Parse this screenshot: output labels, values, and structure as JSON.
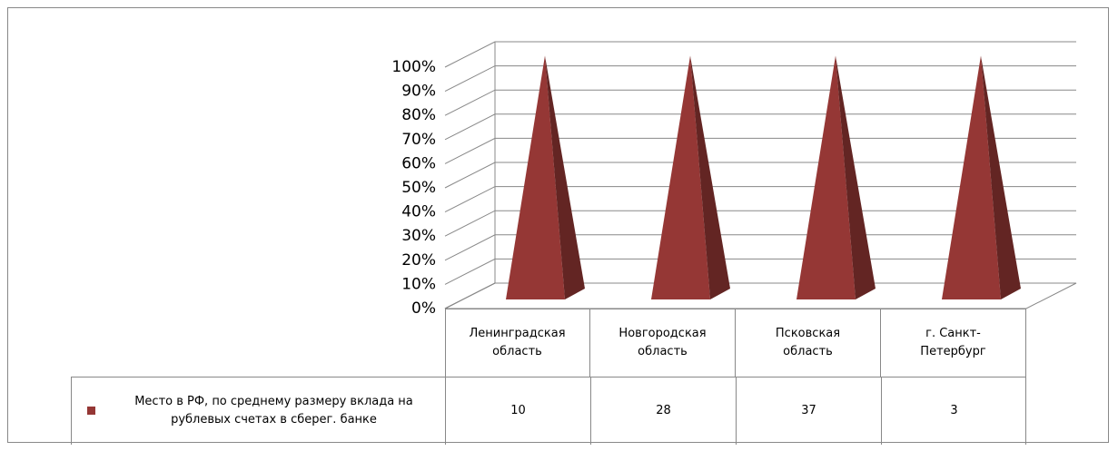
{
  "chart_data": {
    "type": "pyramid3d_percent_stacked",
    "categories": [
      "Ленинградская область",
      "Новгородская область",
      "Псковская область",
      "г. Санкт-Петербург"
    ],
    "series": [
      {
        "name": "Место в РФ, по среднему размеру вклада на рублевых счетах в сберег. банке",
        "color": "#953735",
        "values": [
          10,
          28,
          37,
          3
        ]
      }
    ],
    "ylim": [
      0,
      100
    ],
    "yticks": [
      {
        "value": 0,
        "label": "0%"
      },
      {
        "value": 10,
        "label": "10%"
      },
      {
        "value": 20,
        "label": "20%"
      },
      {
        "value": 30,
        "label": "30%"
      },
      {
        "value": 40,
        "label": "40%"
      },
      {
        "value": 50,
        "label": "50%"
      },
      {
        "value": 60,
        "label": "60%"
      },
      {
        "value": 70,
        "label": "70%"
      },
      {
        "value": 80,
        "label": "80%"
      },
      {
        "value": 90,
        "label": "90%"
      },
      {
        "value": 100,
        "label": "100%"
      }
    ],
    "grid": true,
    "data_table": true
  }
}
